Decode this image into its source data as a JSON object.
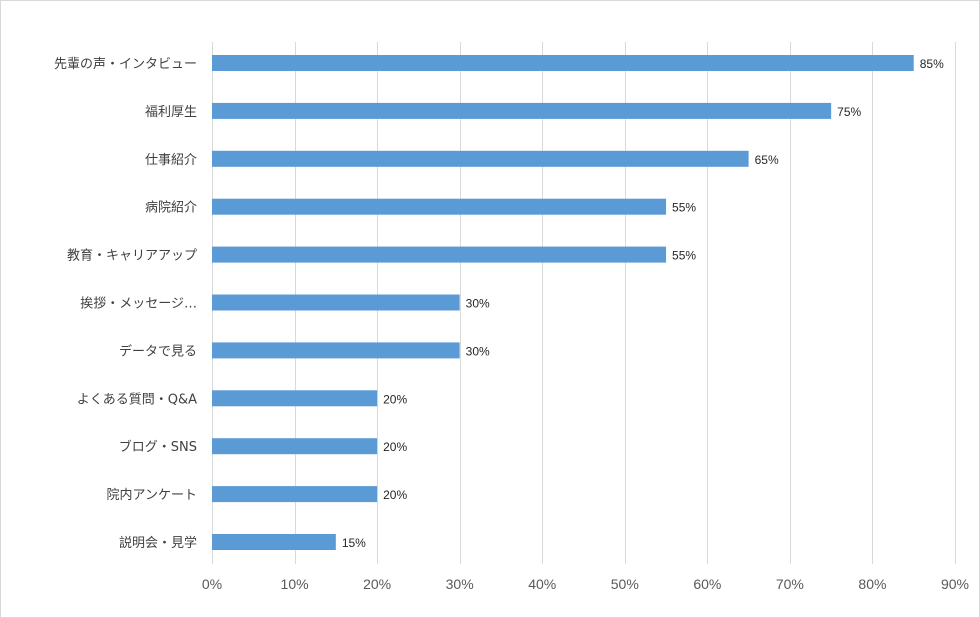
{
  "chart_data": {
    "type": "bar",
    "orientation": "horizontal",
    "categories": [
      "先輩の声・インタビュー",
      "福利厚生",
      "仕事紹介",
      "病院紹介",
      "教育・キャリアアップ",
      "挨拶・メッセージ…",
      "データで見る",
      "よくある質問・Q&A",
      "ブログ・SNS",
      "院内アンケート",
      "説明会・見学"
    ],
    "values": [
      85,
      75,
      65,
      55,
      55,
      30,
      30,
      20,
      20,
      20,
      15
    ],
    "data_labels": [
      "85%",
      "75%",
      "65%",
      "55%",
      "55%",
      "30%",
      "30%",
      "20%",
      "20%",
      "20%",
      "15%"
    ],
    "x_ticks": [
      "0%",
      "10%",
      "20%",
      "30%",
      "40%",
      "50%",
      "60%",
      "70%",
      "80%",
      "90%"
    ],
    "xlim": [
      0,
      90
    ],
    "title": "",
    "xlabel": "",
    "ylabel": "",
    "grid": "vertical",
    "legend": "none",
    "bar_color": "#5b9bd5"
  }
}
